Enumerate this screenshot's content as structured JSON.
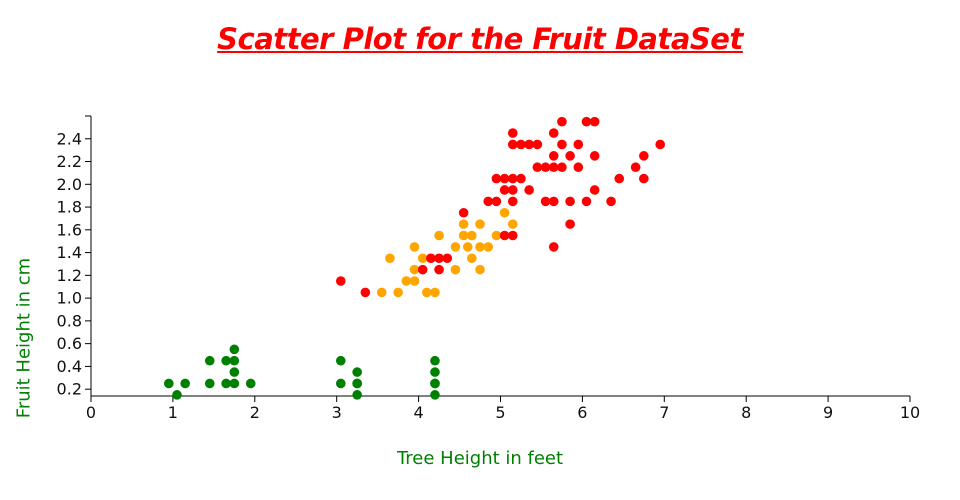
{
  "chart_data": {
    "type": "scatter",
    "title": "Scatter Plot for the Fruit DataSet",
    "xlabel": "Tree Height in feet",
    "ylabel": "Fruit Height in cm",
    "xlim": [
      0,
      10
    ],
    "ylim": [
      0.14,
      2.6
    ],
    "grid": false,
    "x_ticks": [
      "0",
      "1",
      "2",
      "3",
      "4",
      "5",
      "6",
      "7",
      "8",
      "9",
      "10"
    ],
    "y_ticks": [
      "0.2",
      "0.4",
      "0.6",
      "0.8",
      "1.0",
      "1.2",
      "1.4",
      "1.6",
      "1.8",
      "2.0",
      "2.2",
      "2.4"
    ],
    "series": [
      {
        "color": "#008000",
        "points": [
          [
            0.95,
            0.25
          ],
          [
            1.05,
            0.15
          ],
          [
            1.15,
            0.25
          ],
          [
            1.45,
            0.25
          ],
          [
            1.45,
            0.45
          ],
          [
            1.65,
            0.25
          ],
          [
            1.65,
            0.45
          ],
          [
            1.75,
            0.55
          ],
          [
            1.75,
            0.45
          ],
          [
            1.75,
            0.35
          ],
          [
            1.75,
            0.25
          ],
          [
            1.95,
            0.25
          ],
          [
            3.05,
            0.45
          ],
          [
            3.05,
            0.25
          ],
          [
            3.25,
            0.35
          ],
          [
            3.25,
            0.25
          ],
          [
            3.25,
            0.25
          ],
          [
            3.25,
            0.15
          ],
          [
            4.2,
            0.45
          ],
          [
            4.2,
            0.35
          ],
          [
            4.2,
            0.25
          ],
          [
            4.2,
            0.25
          ],
          [
            4.2,
            0.15
          ]
        ]
      },
      {
        "color": "#FFA500",
        "points": [
          [
            3.55,
            1.05
          ],
          [
            3.65,
            1.35
          ],
          [
            3.75,
            1.05
          ],
          [
            3.85,
            1.15
          ],
          [
            3.95,
            1.15
          ],
          [
            3.95,
            1.25
          ],
          [
            3.95,
            1.45
          ],
          [
            4.05,
            1.35
          ],
          [
            4.1,
            1.05
          ],
          [
            4.2,
            1.05
          ],
          [
            4.25,
            1.55
          ],
          [
            4.45,
            1.45
          ],
          [
            4.45,
            1.25
          ],
          [
            4.55,
            1.55
          ],
          [
            4.55,
            1.65
          ],
          [
            4.6,
            1.45
          ],
          [
            4.65,
            1.35
          ],
          [
            4.65,
            1.55
          ],
          [
            4.75,
            1.65
          ],
          [
            4.75,
            1.45
          ],
          [
            4.75,
            1.25
          ],
          [
            4.85,
            1.45
          ],
          [
            4.95,
            1.55
          ],
          [
            5.05,
            1.75
          ],
          [
            5.15,
            1.65
          ]
        ]
      },
      {
        "color": "#FF0000",
        "points": [
          [
            3.05,
            1.15
          ],
          [
            3.35,
            1.05
          ],
          [
            4.05,
            1.25
          ],
          [
            4.15,
            1.35
          ],
          [
            4.25,
            1.35
          ],
          [
            4.25,
            1.25
          ],
          [
            4.35,
            1.35
          ],
          [
            4.55,
            1.75
          ],
          [
            4.85,
            1.85
          ],
          [
            4.95,
            1.85
          ],
          [
            4.95,
            2.05
          ],
          [
            5.05,
            2.05
          ],
          [
            5.05,
            1.95
          ],
          [
            5.05,
            1.55
          ],
          [
            5.15,
            2.45
          ],
          [
            5.15,
            2.35
          ],
          [
            5.15,
            2.05
          ],
          [
            5.15,
            1.95
          ],
          [
            5.15,
            1.85
          ],
          [
            5.15,
            1.55
          ],
          [
            5.25,
            2.35
          ],
          [
            5.25,
            2.05
          ],
          [
            5.35,
            2.35
          ],
          [
            5.35,
            1.95
          ],
          [
            5.45,
            2.35
          ],
          [
            5.45,
            2.15
          ],
          [
            5.55,
            2.15
          ],
          [
            5.55,
            1.85
          ],
          [
            5.65,
            2.45
          ],
          [
            5.65,
            2.25
          ],
          [
            5.65,
            2.15
          ],
          [
            5.65,
            1.85
          ],
          [
            5.65,
            1.45
          ],
          [
            5.75,
            2.55
          ],
          [
            5.75,
            2.35
          ],
          [
            5.75,
            2.15
          ],
          [
            5.85,
            2.25
          ],
          [
            5.85,
            1.85
          ],
          [
            5.85,
            1.65
          ],
          [
            5.95,
            2.35
          ],
          [
            5.95,
            2.15
          ],
          [
            6.05,
            2.55
          ],
          [
            6.05,
            1.85
          ],
          [
            6.15,
            2.55
          ],
          [
            6.15,
            2.25
          ],
          [
            6.15,
            1.95
          ],
          [
            6.35,
            1.85
          ],
          [
            6.45,
            2.05
          ],
          [
            6.65,
            2.15
          ],
          [
            6.75,
            2.25
          ],
          [
            6.75,
            2.05
          ],
          [
            6.95,
            2.35
          ]
        ]
      }
    ]
  },
  "colors": {
    "title": "#FF0000",
    "axis_label": "#008000",
    "axis": "#000000"
  }
}
